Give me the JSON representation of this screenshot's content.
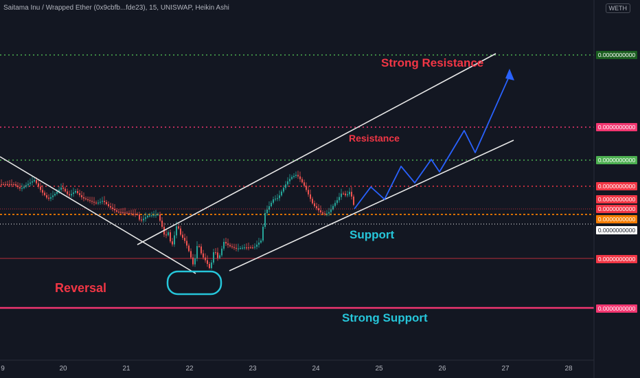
{
  "header": {
    "title": "Saitama Inu / Wrapped Ether (0x9cbfb...fde23), 15, UNISWAP, Heikin Ashi",
    "currency": "WETH"
  },
  "chart_data": {
    "type": "candlestick",
    "title": "Saitama Inu / Wrapped Ether (0x9cbfb...fde23), 15, UNISWAP, Heikin Ashi",
    "x_ticks": [
      "9",
      "20",
      "21",
      "22",
      "23",
      "24",
      "25",
      "26",
      "27",
      "28"
    ],
    "price_labels": [
      {
        "text": "0.0000000000",
        "color": "#1b5e20",
        "level": "strong-resistance"
      },
      {
        "text": "0.0000000000",
        "color": "#f23670",
        "level": "resistance"
      },
      {
        "text": "0.0000000000",
        "color": "#4caf50",
        "level": "upper-dotted"
      },
      {
        "text": "0.0000000000",
        "color": "#f23645",
        "level": "red-dotted"
      },
      {
        "text": "0.0000000000",
        "color": "#f23645",
        "level": "last-price-1"
      },
      {
        "text": "0.0000000000",
        "color": "#f23645",
        "level": "last-price-2"
      },
      {
        "text": "0.0000000000",
        "color": "#f57c00",
        "level": "orange-dotted"
      },
      {
        "text": "0.0000000000",
        "color": "#ffffff",
        "level": "white-dotted"
      },
      {
        "text": "0.0000000000",
        "color": "#f23645",
        "level": "red-line"
      },
      {
        "text": "0.0000000000",
        "color": "#f23670",
        "level": "strong-support"
      }
    ],
    "annotations": {
      "strong_resistance": "Strong Resistance",
      "resistance": "Resistance",
      "support": "Support",
      "reversal": "Reversal",
      "strong_support": "Strong Support"
    },
    "colors": {
      "up": "#26a69a",
      "down": "#ef5350",
      "channel": "#e8e8e8",
      "projection": "#2962ff",
      "reversal_circle": "#26c6da"
    },
    "grid": false
  }
}
